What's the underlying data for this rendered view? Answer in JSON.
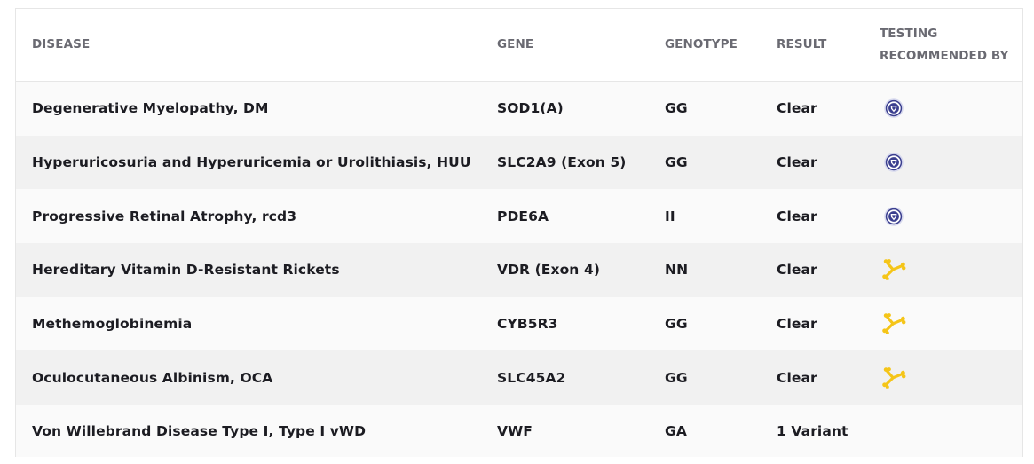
{
  "table": {
    "headers": {
      "disease": "DISEASE",
      "gene": "GENE",
      "genotype": "GENOTYPE",
      "result": "RESULT",
      "recommended_line1": "TESTING",
      "recommended_line2": "RECOMMENDED BY"
    },
    "rows": [
      {
        "disease": "Degenerative Myelopathy, DM",
        "gene": "SOD1(A)",
        "genotype": "GG",
        "result": "Clear",
        "recommended_icon": "shield-badge-icon"
      },
      {
        "disease": "Hyperuricosuria and Hyperuricemia or Urolithiasis, HUU",
        "gene": "SLC2A9 (Exon 5)",
        "genotype": "GG",
        "result": "Clear",
        "recommended_icon": "shield-badge-icon"
      },
      {
        "disease": "Progressive Retinal Atrophy, rcd3",
        "gene": "PDE6A",
        "genotype": "II",
        "result": "Clear",
        "recommended_icon": "shield-badge-icon"
      },
      {
        "disease": "Hereditary Vitamin D-Resistant Rickets",
        "gene": "VDR (Exon 4)",
        "genotype": "NN",
        "result": "Clear",
        "recommended_icon": "yellow-bone-icon"
      },
      {
        "disease": "Methemoglobinemia",
        "gene": "CYB5R3",
        "genotype": "GG",
        "result": "Clear",
        "recommended_icon": "yellow-bone-icon"
      },
      {
        "disease": "Oculocutaneous Albinism, OCA",
        "gene": "SLC45A2",
        "genotype": "GG",
        "result": "Clear",
        "recommended_icon": "yellow-bone-icon"
      },
      {
        "disease": "Von Willebrand Disease Type I, Type I vWD",
        "gene": "VWF",
        "genotype": "GA",
        "result": "1 Variant",
        "recommended_icon": ""
      }
    ]
  },
  "colors": {
    "header_text": "#6a6a72",
    "row_text": "#1c1c22",
    "row_alt_bg": "#f1f1f1",
    "badge_purple": "#3b3f8f",
    "bone_yellow": "#f5c518"
  }
}
